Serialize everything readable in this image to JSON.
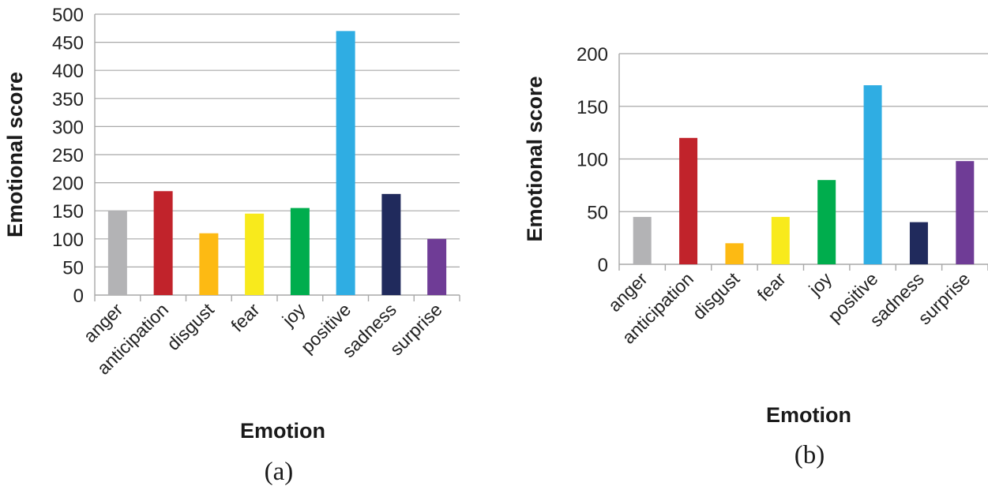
{
  "chart_data": [
    {
      "type": "bar",
      "panel_label": "(a)",
      "title": "",
      "xlabel": "Emotion",
      "ylabel": "Emotional score",
      "ylim": [
        0,
        500
      ],
      "yticks": [
        0,
        50,
        100,
        150,
        200,
        250,
        300,
        350,
        400,
        450,
        500
      ],
      "grid": true,
      "categories": [
        "anger",
        "anticipation",
        "disgust",
        "fear",
        "joy",
        "positive",
        "sadness",
        "surprise"
      ],
      "values": [
        150,
        185,
        110,
        145,
        155,
        470,
        180,
        100
      ],
      "colors": [
        "#b3b3b5",
        "#c1232b",
        "#fdba13",
        "#f8ea1c",
        "#00ad4d",
        "#2fade3",
        "#202a5c",
        "#6f3c96"
      ]
    },
    {
      "type": "bar",
      "panel_label": "(b)",
      "title": "",
      "xlabel": "Emotion",
      "ylabel": "Emotional score",
      "ylim": [
        0,
        200
      ],
      "yticks": [
        0,
        50,
        100,
        150,
        200
      ],
      "grid": true,
      "categories": [
        "anger",
        "anticipation",
        "disgust",
        "fear",
        "joy",
        "positive",
        "sadness",
        "surprise"
      ],
      "values": [
        45,
        120,
        20,
        45,
        80,
        170,
        40,
        98
      ],
      "colors": [
        "#b3b3b5",
        "#c1232b",
        "#fdba13",
        "#f8ea1c",
        "#00ad4d",
        "#2fade3",
        "#202a5c",
        "#6f3c96"
      ]
    }
  ]
}
